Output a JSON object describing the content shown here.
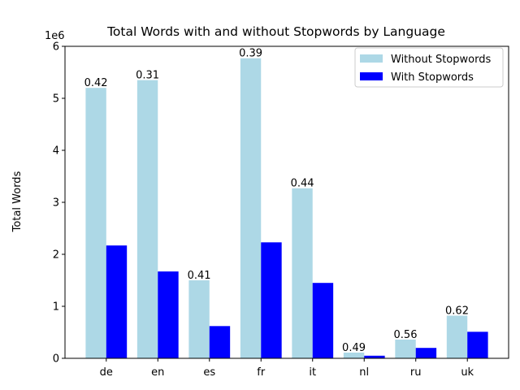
{
  "chart_data": {
    "type": "bar",
    "title": "Total Words with and without Stopwords by Language",
    "xlabel": "",
    "ylabel": "Total Words",
    "y_offset_label": "1e6",
    "y_scale": 1000000,
    "ylim": [
      0,
      6000000
    ],
    "yticks": [
      0,
      1,
      2,
      3,
      4,
      5,
      6
    ],
    "categories": [
      "de",
      "en",
      "es",
      "fr",
      "it",
      "nl",
      "ru",
      "uk"
    ],
    "series": [
      {
        "name": "Without Stopwords",
        "color": "#add8e6",
        "values": [
          5200000,
          5350000,
          1500000,
          5770000,
          3270000,
          110000,
          360000,
          820000
        ]
      },
      {
        "name": "With Stopwords",
        "color": "#0000ff",
        "values": [
          2170000,
          1670000,
          620000,
          2230000,
          1450000,
          50000,
          200000,
          510000
        ]
      }
    ],
    "annotations": [
      "0.42",
      "0.31",
      "0.41",
      "0.39",
      "0.44",
      "0.49",
      "0.56",
      "0.62"
    ],
    "grid": false,
    "legend": "top-right"
  }
}
